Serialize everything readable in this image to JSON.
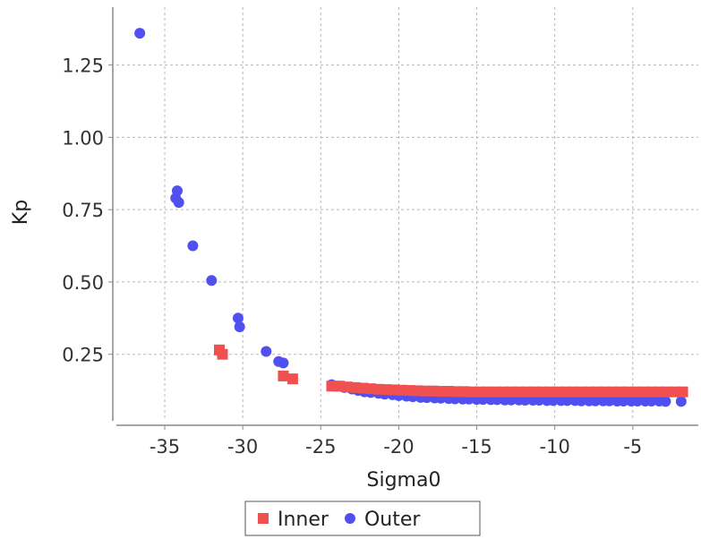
{
  "chart_data": {
    "type": "scatter",
    "title": "",
    "xlabel": "Sigma0",
    "ylabel": "Kp",
    "xlim": [
      -38.1,
      -0.8
    ],
    "ylim": [
      0.02,
      1.45
    ],
    "grid": true,
    "legend_position": "bottom-center",
    "x_ticks": [
      {
        "value": -35,
        "label": "-35"
      },
      {
        "value": -30,
        "label": "-30"
      },
      {
        "value": -25,
        "label": "-25"
      },
      {
        "value": -20,
        "label": "-20"
      },
      {
        "value": -15,
        "label": "-15"
      },
      {
        "value": -10,
        "label": "-10"
      },
      {
        "value": -5,
        "label": "-5"
      }
    ],
    "y_ticks": [
      {
        "value": 0.25,
        "label": "0.25"
      },
      {
        "value": 0.5,
        "label": "0.50"
      },
      {
        "value": 0.75,
        "label": "0.75"
      },
      {
        "value": 1.0,
        "label": "1.00"
      },
      {
        "value": 1.25,
        "label": "1.25"
      }
    ],
    "series": [
      {
        "name": "Inner",
        "marker": "square",
        "color": "#f05050",
        "points": [
          [
            -31.5,
            0.265
          ],
          [
            -31.3,
            0.25
          ],
          [
            -27.4,
            0.175
          ],
          [
            -26.8,
            0.165
          ],
          [
            -24.3,
            0.14
          ],
          [
            -23.8,
            0.14
          ],
          [
            -23.3,
            0.137
          ],
          [
            -22.8,
            0.135
          ],
          [
            -22.3,
            0.133
          ],
          [
            -21.8,
            0.131
          ],
          [
            -21.3,
            0.129
          ],
          [
            -20.8,
            0.128
          ],
          [
            -20.3,
            0.127
          ],
          [
            -19.8,
            0.126
          ],
          [
            -19.3,
            0.125
          ],
          [
            -18.8,
            0.124
          ],
          [
            -18.3,
            0.123
          ],
          [
            -17.8,
            0.123
          ],
          [
            -17.3,
            0.122
          ],
          [
            -16.8,
            0.122
          ],
          [
            -16.3,
            0.121
          ],
          [
            -15.8,
            0.121
          ],
          [
            -15.3,
            0.12
          ],
          [
            -14.8,
            0.12
          ],
          [
            -14.3,
            0.12
          ],
          [
            -13.8,
            0.12
          ],
          [
            -13.3,
            0.12
          ],
          [
            -12.8,
            0.12
          ],
          [
            -12.3,
            0.12
          ],
          [
            -11.8,
            0.12
          ],
          [
            -11.3,
            0.12
          ],
          [
            -10.8,
            0.12
          ],
          [
            -10.3,
            0.12
          ],
          [
            -9.8,
            0.12
          ],
          [
            -9.3,
            0.12
          ],
          [
            -8.8,
            0.12
          ],
          [
            -8.3,
            0.12
          ],
          [
            -7.8,
            0.12
          ],
          [
            -7.3,
            0.12
          ],
          [
            -6.8,
            0.12
          ],
          [
            -6.3,
            0.12
          ],
          [
            -5.8,
            0.12
          ],
          [
            -5.3,
            0.12
          ],
          [
            -4.8,
            0.12
          ],
          [
            -4.3,
            0.12
          ],
          [
            -3.8,
            0.12
          ],
          [
            -3.3,
            0.12
          ],
          [
            -2.8,
            0.12
          ],
          [
            -2.3,
            0.12
          ],
          [
            -1.8,
            0.12
          ]
        ]
      },
      {
        "name": "Outer",
        "marker": "circle",
        "color": "#5050f0",
        "points": [
          [
            -36.6,
            1.36
          ],
          [
            -34.2,
            0.815
          ],
          [
            -34.3,
            0.79
          ],
          [
            -34.1,
            0.775
          ],
          [
            -33.2,
            0.625
          ],
          [
            -32.0,
            0.505
          ],
          [
            -30.3,
            0.375
          ],
          [
            -30.2,
            0.345
          ],
          [
            -28.5,
            0.26
          ],
          [
            -27.7,
            0.225
          ],
          [
            -27.4,
            0.22
          ],
          [
            -24.3,
            0.145
          ],
          [
            -23.9,
            0.14
          ],
          [
            -23.5,
            0.135
          ],
          [
            -23.0,
            0.13
          ],
          [
            -22.6,
            0.125
          ],
          [
            -22.2,
            0.12
          ],
          [
            -21.8,
            0.118
          ],
          [
            -21.3,
            0.115
          ],
          [
            -20.9,
            0.112
          ],
          [
            -20.4,
            0.11
          ],
          [
            -20.0,
            0.107
          ],
          [
            -19.5,
            0.105
          ],
          [
            -19.1,
            0.103
          ],
          [
            -18.6,
            0.101
          ],
          [
            -18.2,
            0.1
          ],
          [
            -17.7,
            0.099
          ],
          [
            -17.3,
            0.098
          ],
          [
            -16.8,
            0.097
          ],
          [
            -16.4,
            0.096
          ],
          [
            -15.9,
            0.095
          ],
          [
            -15.5,
            0.095
          ],
          [
            -15.0,
            0.094
          ],
          [
            -14.6,
            0.094
          ],
          [
            -14.1,
            0.093
          ],
          [
            -13.7,
            0.093
          ],
          [
            -13.2,
            0.092
          ],
          [
            -12.8,
            0.092
          ],
          [
            -12.3,
            0.092
          ],
          [
            -11.9,
            0.091
          ],
          [
            -11.4,
            0.091
          ],
          [
            -11.0,
            0.091
          ],
          [
            -10.5,
            0.09
          ],
          [
            -10.1,
            0.09
          ],
          [
            -9.6,
            0.09
          ],
          [
            -9.2,
            0.09
          ],
          [
            -8.7,
            0.09
          ],
          [
            -8.3,
            0.089
          ],
          [
            -7.8,
            0.089
          ],
          [
            -7.4,
            0.089
          ],
          [
            -6.9,
            0.089
          ],
          [
            -6.5,
            0.089
          ],
          [
            -6.0,
            0.088
          ],
          [
            -5.6,
            0.088
          ],
          [
            -5.1,
            0.088
          ],
          [
            -4.7,
            0.088
          ],
          [
            -4.2,
            0.088
          ],
          [
            -3.8,
            0.088
          ],
          [
            -3.3,
            0.088
          ],
          [
            -2.9,
            0.087
          ],
          [
            -1.9,
            0.087
          ]
        ]
      }
    ]
  }
}
